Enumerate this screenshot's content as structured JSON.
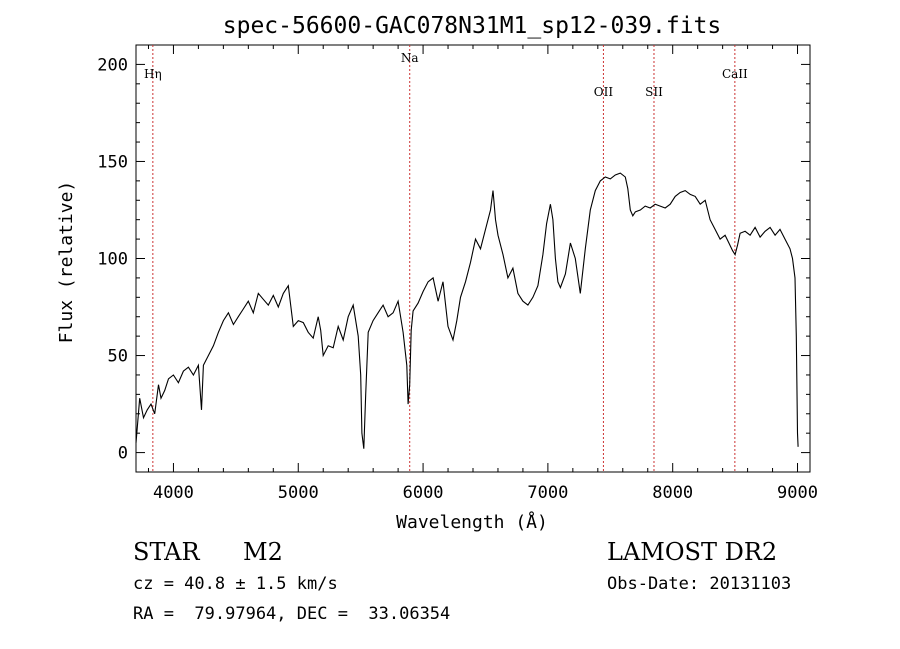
{
  "chart_data": {
    "type": "line",
    "title": "spec-56600-GAC078N31M1_sp12-039.fits",
    "xlabel": "Wavelength (Å)",
    "ylabel": "Flux (relative)",
    "xlim": [
      3700,
      9100
    ],
    "ylim": [
      -10,
      210
    ],
    "xticks": [
      4000,
      5000,
      6000,
      7000,
      8000,
      9000
    ],
    "yticks": [
      0,
      50,
      100,
      150,
      200
    ],
    "grid": false,
    "line_color": "#000000",
    "marker_color": "#cc3333",
    "lines": [
      {
        "label": "Hη",
        "x": 3835
      },
      {
        "label": "Na",
        "x": 5893
      },
      {
        "label": "OII",
        "x": 7445
      },
      {
        "label": "SII",
        "x": 7850
      },
      {
        "label": "CaII",
        "x": 8498
      }
    ],
    "series": [
      {
        "x": [
          3700,
          3730,
          3760,
          3790,
          3820,
          3850,
          3880,
          3900,
          3930,
          3960,
          4000,
          4040,
          4080,
          4120,
          4160,
          4200,
          4225,
          4240,
          4280,
          4320,
          4360,
          4400,
          4440,
          4480,
          4520,
          4560,
          4600,
          4640,
          4680,
          4720,
          4760,
          4800,
          4840,
          4880,
          4920,
          4960,
          5000,
          5040,
          5080,
          5120,
          5160,
          5180,
          5200,
          5240,
          5280,
          5320,
          5360,
          5400,
          5440,
          5480,
          5500,
          5510,
          5525,
          5540,
          5560,
          5600,
          5640,
          5680,
          5720,
          5760,
          5800,
          5840,
          5870,
          5880,
          5893,
          5905,
          5920,
          5960,
          6000,
          6040,
          6080,
          6120,
          6160,
          6200,
          6240,
          6270,
          6300,
          6340,
          6380,
          6420,
          6460,
          6500,
          6540,
          6560,
          6570,
          6580,
          6600,
          6640,
          6680,
          6720,
          6760,
          6800,
          6840,
          6880,
          6920,
          6960,
          6990,
          7020,
          7040,
          7060,
          7080,
          7100,
          7140,
          7180,
          7220,
          7260,
          7300,
          7340,
          7380,
          7420,
          7460,
          7500,
          7540,
          7580,
          7620,
          7640,
          7660,
          7680,
          7700,
          7740,
          7780,
          7820,
          7860,
          7900,
          7940,
          7980,
          8020,
          8060,
          8100,
          8140,
          8180,
          8220,
          8260,
          8300,
          8340,
          8380,
          8420,
          8450,
          8480,
          8500,
          8520,
          8540,
          8580,
          8620,
          8660,
          8700,
          8740,
          8780,
          8820,
          8860,
          8900,
          8940,
          8960,
          8980,
          8990,
          9000,
          9005
        ],
        "y": [
          5,
          28,
          18,
          22,
          25,
          20,
          35,
          28,
          32,
          38,
          40,
          36,
          42,
          44,
          40,
          45,
          22,
          45,
          50,
          55,
          62,
          68,
          72,
          66,
          70,
          74,
          78,
          72,
          82,
          79,
          76,
          81,
          75,
          82,
          86,
          65,
          68,
          67,
          62,
          59,
          70,
          63,
          50,
          55,
          54,
          65,
          58,
          70,
          76,
          60,
          40,
          10,
          2,
          30,
          62,
          68,
          72,
          76,
          70,
          72,
          78,
          62,
          45,
          25,
          35,
          63,
          73,
          77,
          83,
          88,
          90,
          78,
          88,
          65,
          58,
          68,
          80,
          88,
          98,
          110,
          105,
          115,
          125,
          135,
          128,
          120,
          112,
          102,
          90,
          95,
          82,
          78,
          76,
          80,
          86,
          102,
          118,
          128,
          120,
          100,
          88,
          85,
          92,
          108,
          100,
          82,
          105,
          125,
          135,
          140,
          142,
          141,
          143,
          144,
          142,
          136,
          125,
          122,
          124,
          125,
          127,
          126,
          128,
          127,
          126,
          128,
          132,
          134,
          135,
          133,
          132,
          128,
          130,
          120,
          115,
          110,
          112,
          108,
          104,
          102,
          107,
          113,
          114,
          112,
          116,
          111,
          114,
          116,
          112,
          115,
          110,
          105,
          100,
          90,
          60,
          10,
          3
        ]
      }
    ],
    "info": {
      "class_label": "STAR",
      "subclass": "M2",
      "survey": "LAMOST DR2",
      "cz": "cz = 40.8 ± 1.5 km/s",
      "obs_date": "Obs-Date: 20131103",
      "coords": "RA =  79.97964, DEC =  33.06354"
    }
  }
}
